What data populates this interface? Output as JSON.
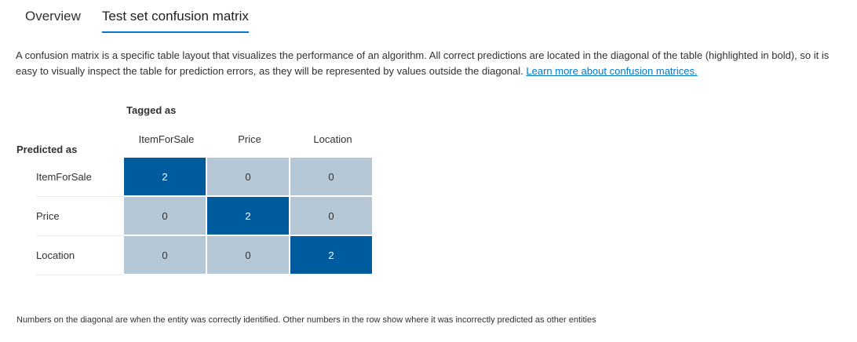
{
  "tabs": [
    {
      "label": "Overview",
      "selected": false
    },
    {
      "label": "Test set confusion matrix",
      "selected": true
    }
  ],
  "accent_color": "#0078d4",
  "description": {
    "text": "A confusion matrix is a specific table layout that visualizes the performance of an algorithm. All correct predictions are located in the diagonal of the table (highlighted in bold), so it is easy to visually inspect the table for prediction errors, as they will be represented by values outside the diagonal.",
    "link_text": "Learn more about confusion matrices."
  },
  "matrix": {
    "tagged_as_label": "Tagged as",
    "predicted_as_label": "Predicted as",
    "columns": [
      "ItemForSale",
      "Price",
      "Location"
    ],
    "rows": [
      {
        "label": "ItemForSale",
        "values": [
          "2",
          "0",
          "0"
        ]
      },
      {
        "label": "Price",
        "values": [
          "0",
          "2",
          "0"
        ]
      },
      {
        "label": "Location",
        "values": [
          "0",
          "0",
          "2"
        ]
      }
    ],
    "diagonal_color": "#005a9e",
    "off_diagonal_color": "#b5c7d5"
  },
  "footnote": "Numbers on the diagonal are when the entity was correctly identified. Other numbers in the row show where it was incorrectly predicted as other entities"
}
